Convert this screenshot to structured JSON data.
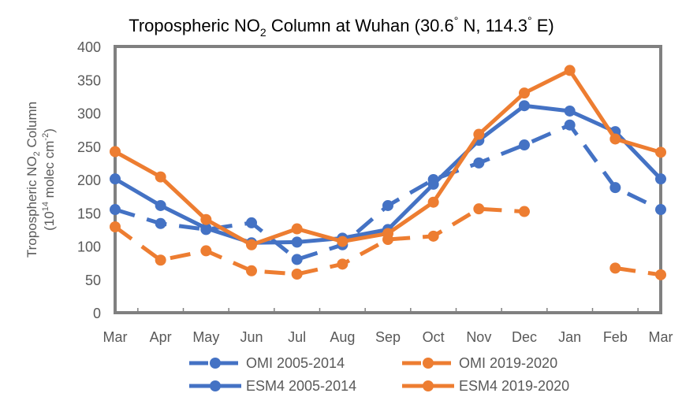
{
  "chart_data": {
    "type": "line",
    "title": "Tropospheric NO",
    "title_sub": "2",
    "title_rest": " Column at Wuhan (30.6",
    "title_deg1": "°",
    "title_mid": " N, 114.3",
    "title_deg2": "°",
    "title_end": " E)",
    "ylabel_line1_a": "Tropospheric NO",
    "ylabel_line1_sub": "2",
    "ylabel_line1_b": " Column",
    "ylabel_line2_a": "(10",
    "ylabel_line2_sup1": "14",
    "ylabel_line2_b": " molec cm",
    "ylabel_line2_sup2": "-2",
    "ylabel_line2_c": ")",
    "xlabel": "",
    "categories": [
      "Mar",
      "Apr",
      "May",
      "Jun",
      "Jul",
      "Aug",
      "Sep",
      "Oct",
      "Nov",
      "Dec",
      "Jan",
      "Feb",
      "Mar"
    ],
    "ylim": [
      0,
      400
    ],
    "yticks": [
      0,
      50,
      100,
      150,
      200,
      250,
      300,
      350,
      400
    ],
    "grid": false,
    "legend_position": "bottom",
    "series": [
      {
        "name": "OMI 2005-2014",
        "color": "#4472C4",
        "style": "dashed",
        "values": [
          155,
          134,
          125,
          135,
          80,
          102,
          161,
          200,
          225,
          252,
          282,
          188,
          155
        ]
      },
      {
        "name": "OMI 2019-2020",
        "color": "#ED7D31",
        "style": "dashed",
        "values": [
          129,
          79,
          93,
          63,
          58,
          73,
          110,
          115,
          156,
          152,
          null,
          67,
          57
        ]
      },
      {
        "name": "ESM4 2005-2014",
        "color": "#4472C4",
        "style": "solid",
        "values": [
          201,
          161,
          127,
          105,
          106,
          112,
          125,
          193,
          259,
          311,
          303,
          272,
          201
        ]
      },
      {
        "name": "ESM4 2019-2020",
        "color": "#ED7D31",
        "style": "solid",
        "values": [
          242,
          204,
          140,
          102,
          126,
          107,
          119,
          166,
          268,
          330,
          364,
          261,
          241
        ]
      }
    ]
  }
}
